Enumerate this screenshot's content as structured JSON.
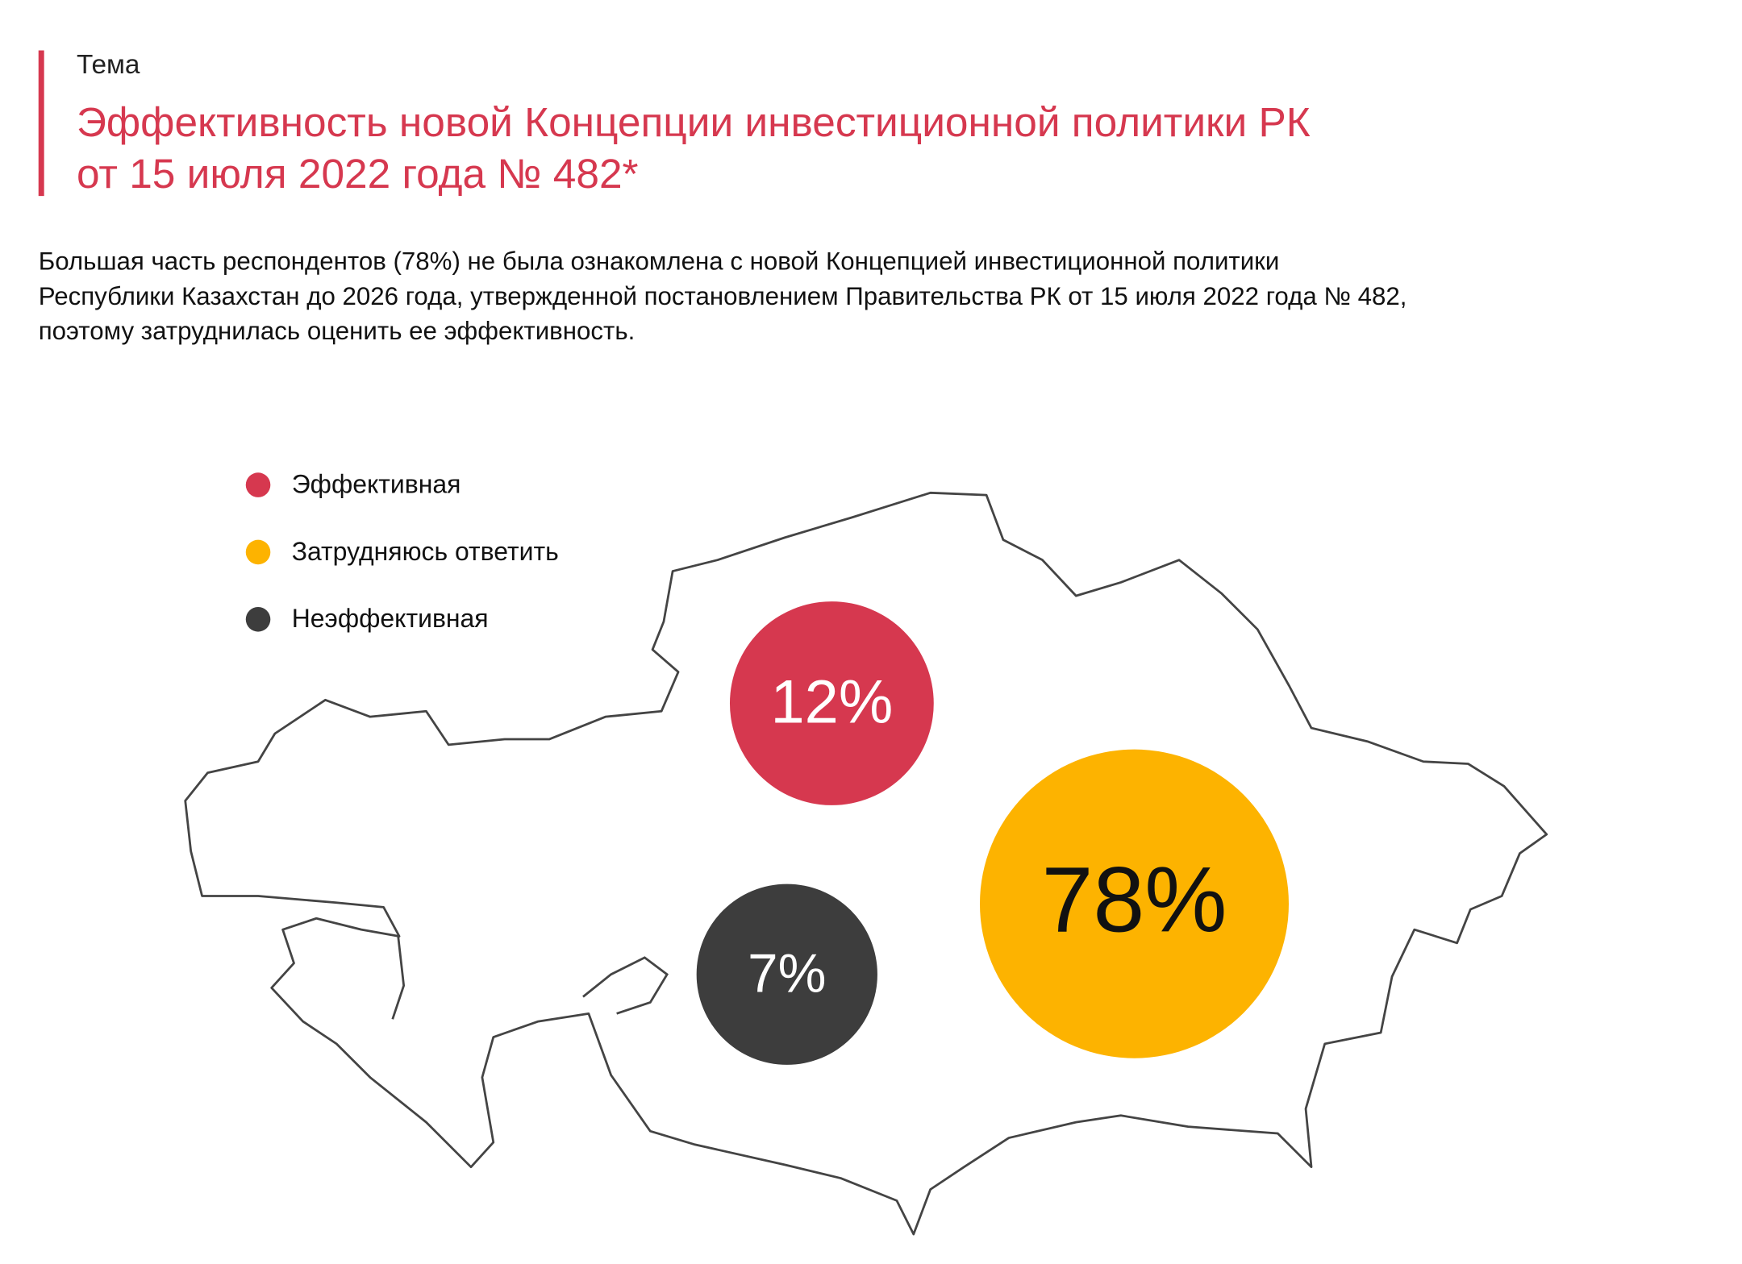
{
  "chart_data": {
    "type": "bubble",
    "kicker": "Тема",
    "title": [
      "Эффективность новой Концепции инвестиционной политики РК",
      "от 15 июля 2022 года № 482*"
    ],
    "description": [
      "Большая часть респондентов (78%) не была ознакомлена с новой Концепцией инвестиционной политики",
      "Республики Казахстан до 2026 года, утвержденной постановлением Правительства РК от 15 июля 2022 года № 482,",
      "поэтому затруднилась оценить ее эффективность."
    ],
    "categories": [
      "Эффективная",
      "Затрудняюсь ответить",
      "Неэффективная"
    ],
    "values": [
      12,
      78,
      7
    ],
    "value_labels": [
      "12%",
      "78%",
      "7%"
    ],
    "colors": [
      "#d6384f",
      "#fdb300",
      "#3d3d3d"
    ],
    "legend": true
  }
}
